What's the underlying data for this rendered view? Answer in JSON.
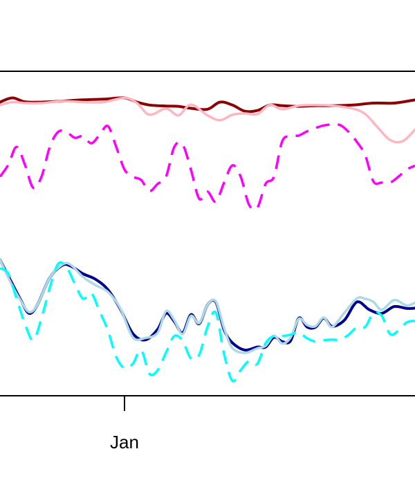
{
  "chart_data": {
    "type": "line",
    "title": "",
    "xlabel": "",
    "ylabel": "",
    "x_tick_labels": [
      "Jan"
    ],
    "x_tick_positions": [
      0.3
    ],
    "xlim": [
      0,
      1
    ],
    "ylim": [
      0,
      100
    ],
    "grid": false,
    "legend": "none",
    "series": [
      {
        "color": "#8B0000",
        "dash": "solid",
        "width": 4,
        "x": [
          0.0,
          0.03,
          0.06,
          0.1,
          0.15,
          0.2,
          0.25,
          0.3,
          0.33,
          0.36,
          0.4,
          0.43,
          0.46,
          0.5,
          0.53,
          0.56,
          0.59,
          0.62,
          0.65,
          0.68,
          0.72,
          0.76,
          0.8,
          0.85,
          0.9,
          0.95,
          1.0
        ],
        "y": [
          90.5,
          91.8,
          90.6,
          90.5,
          90.8,
          91.2,
          91.4,
          91.8,
          90.5,
          89.6,
          89.3,
          89.2,
          88.6,
          88.3,
          90.5,
          89.6,
          87.7,
          87.9,
          89.6,
          89.4,
          89.2,
          89.4,
          89.4,
          89.6,
          90.2,
          90.2,
          91.2
        ]
      },
      {
        "color": "#FFB6C1",
        "dash": "solid",
        "width": 3.5,
        "x": [
          0.0,
          0.03,
          0.06,
          0.1,
          0.15,
          0.2,
          0.25,
          0.3,
          0.33,
          0.36,
          0.4,
          0.43,
          0.46,
          0.5,
          0.53,
          0.56,
          0.59,
          0.62,
          0.65,
          0.68,
          0.72,
          0.76,
          0.8,
          0.85,
          0.88,
          0.91,
          0.94,
          0.97,
          1.0
        ],
        "y": [
          89.6,
          90.5,
          90.2,
          90.2,
          90.8,
          90.5,
          90.5,
          91.8,
          90.2,
          86.6,
          88.5,
          86.4,
          89.7,
          86.4,
          84.9,
          86.6,
          87.0,
          86.8,
          89.6,
          88.3,
          89.4,
          89.6,
          89.4,
          88.5,
          86.8,
          82.7,
          78.8,
          78.4,
          82.0
        ]
      },
      {
        "color": "#FF00FF",
        "dash": "dashed",
        "width": 3.5,
        "x": [
          0.0,
          0.02,
          0.04,
          0.06,
          0.08,
          0.1,
          0.12,
          0.14,
          0.16,
          0.18,
          0.2,
          0.22,
          0.24,
          0.26,
          0.28,
          0.3,
          0.32,
          0.34,
          0.36,
          0.38,
          0.4,
          0.42,
          0.44,
          0.46,
          0.48,
          0.5,
          0.52,
          0.54,
          0.56,
          0.58,
          0.6,
          0.62,
          0.64,
          0.66,
          0.68,
          0.7,
          0.72,
          0.74,
          0.76,
          0.78,
          0.8,
          0.82,
          0.84,
          0.86,
          0.88,
          0.9,
          0.92,
          0.94,
          0.96,
          0.98,
          1.0
        ],
        "y": [
          67.5,
          71.2,
          76.7,
          71.2,
          64.1,
          67.5,
          76.7,
          81.3,
          81.3,
          79.5,
          80.0,
          77.8,
          80.4,
          83.1,
          76.7,
          69.7,
          67.5,
          66.5,
          63.1,
          65.3,
          67.5,
          76.7,
          77.4,
          69.7,
          60.7,
          62.9,
          59.8,
          65.7,
          71.0,
          67.5,
          58.9,
          57.9,
          65.3,
          67.5,
          78.4,
          80.0,
          80.2,
          81.5,
          82.5,
          83.3,
          83.6,
          83.4,
          81.3,
          78.2,
          74.1,
          66.0,
          65.7,
          65.7,
          67.5,
          69.7,
          70.9
        ]
      },
      {
        "color": "#00008B",
        "dash": "solid",
        "width": 4,
        "x": [
          0.0,
          0.03,
          0.05,
          0.07,
          0.09,
          0.12,
          0.15,
          0.17,
          0.2,
          0.23,
          0.26,
          0.29,
          0.32,
          0.35,
          0.38,
          0.4,
          0.42,
          0.44,
          0.46,
          0.48,
          0.5,
          0.52,
          0.54,
          0.56,
          0.59,
          0.62,
          0.64,
          0.66,
          0.68,
          0.7,
          0.72,
          0.74,
          0.76,
          0.78,
          0.8,
          0.83,
          0.86,
          0.89,
          0.92,
          0.95,
          0.98,
          1.0
        ],
        "y": [
          41.9,
          34.4,
          29.5,
          25.4,
          28.0,
          36.4,
          40.2,
          40.0,
          37.6,
          35.9,
          32.7,
          26.7,
          19.2,
          17.2,
          20.5,
          25.4,
          22.9,
          19.4,
          25.0,
          22.2,
          28.0,
          28.9,
          20.3,
          16.3,
          14.1,
          15.0,
          15.0,
          18.0,
          16.7,
          16.9,
          23.9,
          21.2,
          21.1,
          23.9,
          21.4,
          23.3,
          28.9,
          26.5,
          25.4,
          27.5,
          26.9,
          27.0
        ]
      },
      {
        "color": "#ADD8E6",
        "dash": "solid",
        "width": 3.5,
        "x": [
          0.0,
          0.03,
          0.05,
          0.07,
          0.09,
          0.12,
          0.15,
          0.17,
          0.2,
          0.23,
          0.26,
          0.29,
          0.32,
          0.35,
          0.38,
          0.4,
          0.42,
          0.44,
          0.46,
          0.48,
          0.5,
          0.52,
          0.54,
          0.56,
          0.59,
          0.62,
          0.64,
          0.66,
          0.68,
          0.7,
          0.72,
          0.74,
          0.76,
          0.78,
          0.8,
          0.83,
          0.86,
          0.88,
          0.9,
          0.92,
          0.95,
          0.98,
          1.0
        ],
        "y": [
          41.9,
          33.8,
          29.3,
          25.8,
          28.0,
          36.4,
          40.4,
          40.4,
          36.6,
          34.1,
          32.0,
          26.9,
          18.0,
          17.8,
          19.4,
          26.1,
          23.3,
          19.0,
          24.6,
          22.4,
          28.0,
          29.1,
          20.8,
          14.7,
          13.2,
          14.6,
          15.4,
          18.5,
          16.1,
          17.9,
          23.7,
          21.8,
          21.4,
          24.1,
          21.2,
          25.6,
          30.0,
          29.9,
          28.9,
          26.5,
          29.5,
          27.8,
          28.7
        ]
      },
      {
        "color": "#00FFFF",
        "dash": "dashed",
        "width": 3.5,
        "x": [
          0.0,
          0.02,
          0.04,
          0.06,
          0.08,
          0.1,
          0.12,
          0.14,
          0.16,
          0.18,
          0.2,
          0.22,
          0.24,
          0.26,
          0.28,
          0.3,
          0.32,
          0.34,
          0.36,
          0.38,
          0.4,
          0.42,
          0.44,
          0.46,
          0.48,
          0.5,
          0.52,
          0.54,
          0.56,
          0.58,
          0.6,
          0.62,
          0.64,
          0.66,
          0.68,
          0.7,
          0.72,
          0.74,
          0.76,
          0.78,
          0.8,
          0.82,
          0.84,
          0.86,
          0.88,
          0.9,
          0.92,
          0.94,
          0.96,
          0.98,
          1.0
        ],
        "y": [
          39.3,
          37.6,
          29.9,
          22.2,
          17.1,
          23.9,
          33.3,
          40.6,
          39.7,
          34.6,
          29.9,
          31.6,
          26.0,
          20.1,
          12.0,
          8.5,
          9.8,
          14.1,
          6.8,
          7.9,
          13.3,
          18.4,
          16.9,
          11.5,
          12.6,
          21.2,
          25.6,
          12.8,
          4.6,
          7.9,
          10.7,
          9.8,
          16.2,
          18.4,
          18.4,
          18.8,
          19.5,
          17.7,
          16.7,
          17.1,
          17.3,
          17.3,
          18.8,
          21.1,
          21.2,
          25.6,
          24.6,
          19.0,
          20.1,
          22.6,
          23.1
        ]
      }
    ]
  }
}
